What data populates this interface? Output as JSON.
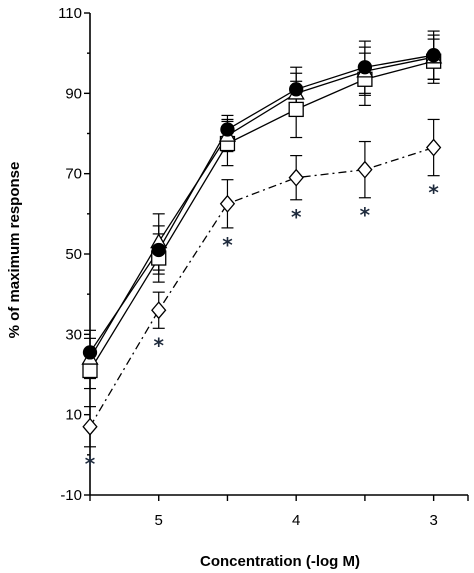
{
  "chart_data": {
    "type": "line",
    "xlabel": "Concentration (-log M)",
    "ylabel": "% of maximum response",
    "x_reversed": true,
    "xlim": [
      5.5,
      2.75
    ],
    "ylim": [
      -10,
      110
    ],
    "x_ticks": [
      5.5,
      5,
      4.5,
      4,
      3.5,
      3,
      2.75
    ],
    "x_tick_labels": [
      "",
      "5",
      "",
      "4",
      "",
      "3",
      ""
    ],
    "y_ticks": [
      -10,
      10,
      30,
      50,
      70,
      90,
      110
    ],
    "y_minor_ticks": [
      0,
      20,
      40,
      60,
      80,
      100
    ],
    "grid": false,
    "legend": "none",
    "x": [
      5.5,
      5,
      4.5,
      4,
      3.5,
      3
    ],
    "series": [
      {
        "marker": "filled-circle",
        "line": "solid",
        "color": "#000000",
        "values": [
          25.5,
          51,
          81,
          91,
          96.5,
          99.5
        ],
        "error": [
          5.5,
          6,
          3.5,
          5.5,
          6.5,
          6
        ]
      },
      {
        "marker": "open-triangle",
        "line": "solid",
        "color": "#000000",
        "values": [
          24,
          53,
          79.5,
          90,
          95.5,
          99
        ],
        "error": [
          5,
          7,
          4,
          5,
          6,
          5.5
        ]
      },
      {
        "marker": "open-square",
        "line": "solid",
        "color": "#000000",
        "values": [
          21,
          49,
          77.5,
          86,
          93.5,
          98
        ],
        "error": [
          4.5,
          6,
          5.5,
          7,
          6.5,
          5.5
        ]
      },
      {
        "marker": "open-diamond",
        "line": "dash-dot",
        "color": "#000000",
        "values": [
          7,
          36,
          62.5,
          69,
          71,
          76.5
        ],
        "error": [
          5,
          4.5,
          6,
          5.5,
          7,
          7
        ]
      }
    ],
    "significance": {
      "mark": "*",
      "series_index": 3,
      "x": [
        5.5,
        5,
        4.5,
        4,
        3.5,
        3
      ]
    }
  }
}
